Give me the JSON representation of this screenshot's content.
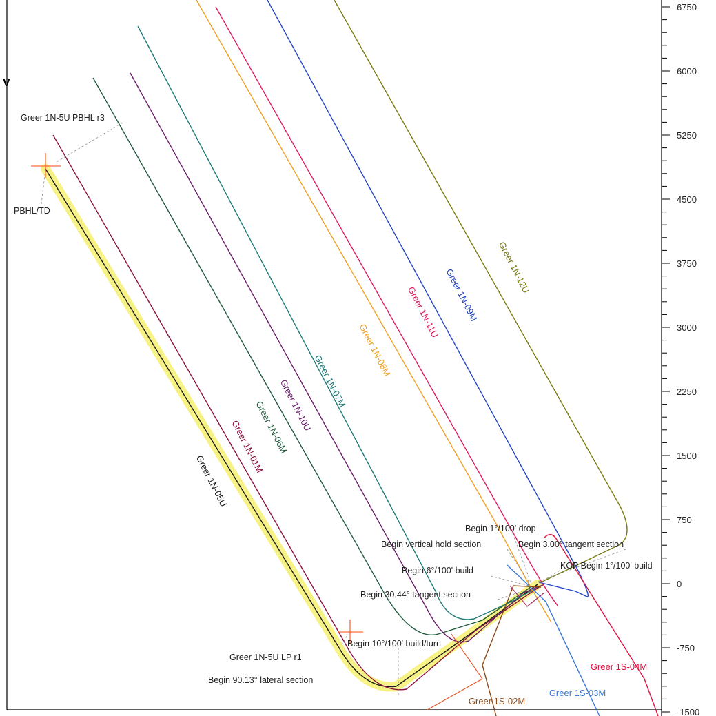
{
  "chart_data": {
    "type": "line",
    "title_fragment": "V",
    "y_axis": {
      "ticks": [
        6750,
        6000,
        5250,
        4500,
        3750,
        3000,
        2250,
        1500,
        750,
        0,
        -750,
        -1500
      ],
      "labels": [
        "6750",
        "6000",
        "5250",
        "4500",
        "3750",
        "3000",
        "2250",
        "1500",
        "750",
        "0",
        "-750",
        "-1500"
      ],
      "minor_step": 150,
      "ylim": [
        -1500,
        7150
      ]
    },
    "grid": false,
    "series": [
      {
        "name": "Greer 1N-05U",
        "color": "#1a1a1a",
        "highlight": "#f4ee5c"
      },
      {
        "name": "Greer 1N-01M",
        "color": "#8a1040"
      },
      {
        "name": "Greer 1N-06M",
        "color": "#1f5a3c"
      },
      {
        "name": "Greer 1N-10U",
        "color": "#6a1a6a"
      },
      {
        "name": "Greer 1N-07M",
        "color": "#1e7a78"
      },
      {
        "name": "Greer 1N-08M",
        "color": "#f0a020"
      },
      {
        "name": "Greer 1N-11U",
        "color": "#e01a5a"
      },
      {
        "name": "Greer 1N-09M",
        "color": "#2244c8"
      },
      {
        "name": "Greer 1N-12U",
        "color": "#7a7a12"
      },
      {
        "name": "Greer 1S-04M",
        "color": "#e0103c"
      },
      {
        "name": "Greer 1S-03M",
        "color": "#3a78d8"
      },
      {
        "name": "Greer 1S-02M",
        "color": "#8a4a1a"
      }
    ],
    "annotations": [
      "Greer 1N-5U PBHL r3",
      "PBHL/TD",
      "Begin 1°/100' drop",
      "Begin vertical hold section",
      "Begin 3.00° tangent section",
      "KOP Begin 1°/100' build",
      "Begin 6°/100' build",
      "Begin 30.44° tangent section",
      "Begin 10°/100' build/turn",
      "Greer 1N-5U LP r1",
      "Begin 90.13° lateral section"
    ]
  }
}
